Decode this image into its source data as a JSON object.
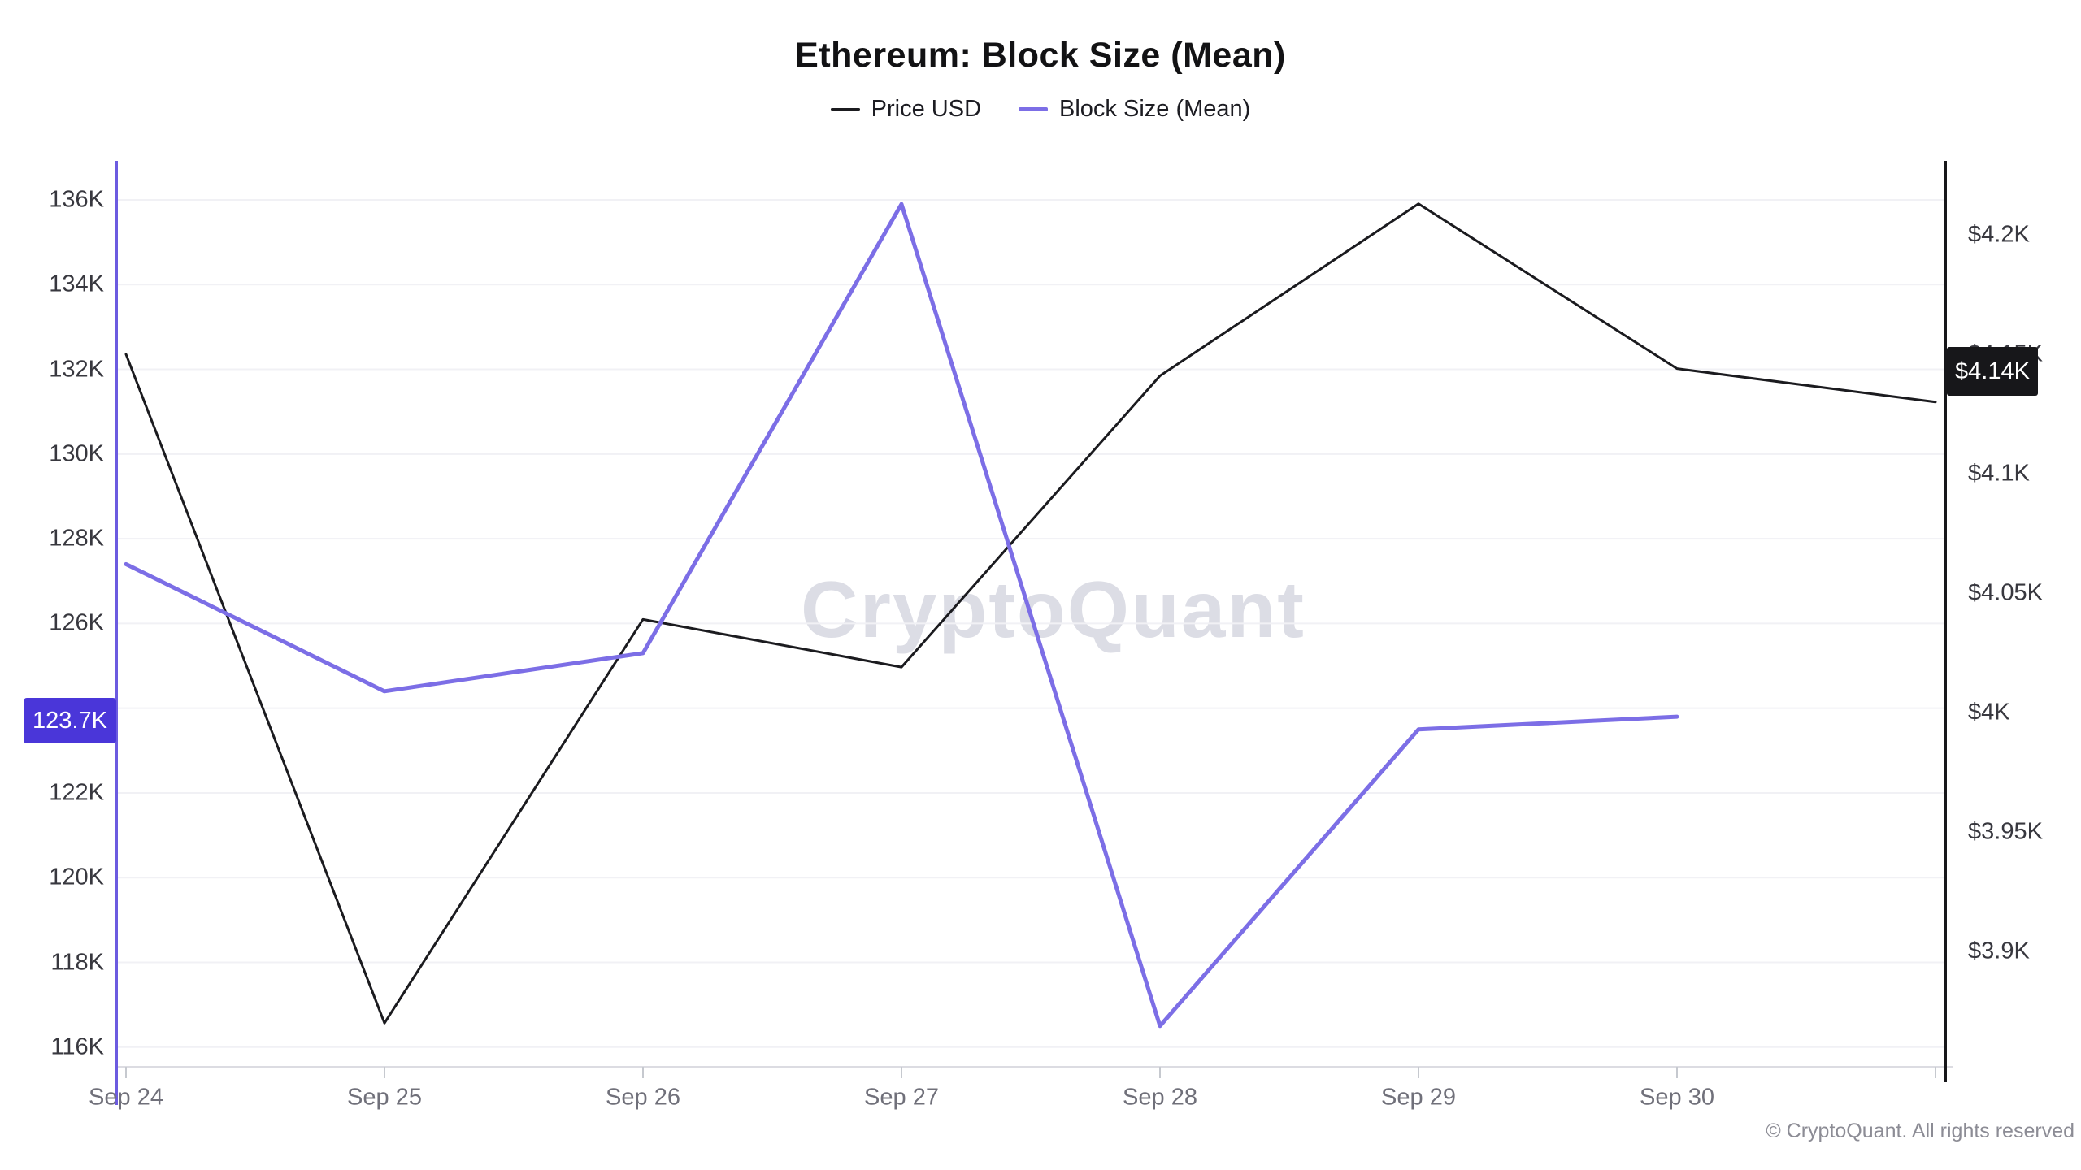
{
  "page": {
    "title": "Ethereum: Block Size (Mean)",
    "watermark": "CryptoQuant",
    "copyright": "© CryptoQuant. All rights reserved"
  },
  "legend": {
    "items": [
      {
        "label": "Price USD",
        "color": "#1b1b1f",
        "marker_thickness": 3
      },
      {
        "label": "Block Size (Mean)",
        "color": "#7c6ee6",
        "marker_thickness": 5
      }
    ],
    "position": "top-center"
  },
  "left_axis": {
    "series": "Block Size (Mean)",
    "unit": "KB",
    "axis_color": "#6c5be0",
    "tick_values": [
      136,
      134,
      132,
      130,
      128,
      126,
      124,
      122,
      120,
      118,
      116
    ],
    "tick_labels": [
      "136K",
      "134K",
      "132K",
      "130K",
      "128K",
      "126K",
      null,
      "122K",
      "120K",
      "118K",
      "116K"
    ],
    "badge": {
      "label": "123.7K",
      "value": 123.7,
      "bg": "#4a36d9"
    }
  },
  "right_axis": {
    "series": "Price USD",
    "unit": "USD",
    "axis_color": "#17171a",
    "tick_values": [
      4200,
      4150,
      4100,
      4050,
      4000,
      3950,
      3900
    ],
    "tick_labels": [
      "$4.2K",
      "$4.15K",
      "$4.1K",
      "$4.05K",
      "$4K",
      "$3.95K",
      "$3.9K"
    ],
    "hidden_tick_behind_badge": "$4.15K",
    "badge": {
      "label": "$4.14K",
      "value": 4140,
      "bg": "#17171a"
    }
  },
  "x_axis": {
    "labels": [
      "Sep 24",
      "Sep 25",
      "Sep 26",
      "Sep 27",
      "Sep 28",
      "Sep 29",
      "Sep 30"
    ]
  },
  "chart_data": {
    "type": "line",
    "title": "Ethereum: Block Size (Mean)",
    "x": [
      "Sep 24",
      "Sep 25",
      "Sep 26",
      "Sep 27",
      "Sep 28",
      "Sep 29",
      "Sep 30",
      "Oct 1 (partial, unlabeled)"
    ],
    "series": [
      {
        "name": "Price USD",
        "yaxis": "right",
        "color": "#1b1b1f",
        "units": "USD",
        "values": [
          4150,
          3870,
          4039,
          4019,
          4141,
          4213,
          4144,
          4130
        ],
        "latest_badge": "$4.14K"
      },
      {
        "name": "Block Size (Mean)",
        "yaxis": "left",
        "color": "#7c6ee6",
        "units": "KB (thousands of bytes)",
        "values": [
          127.4,
          124.4,
          125.3,
          135.9,
          116.5,
          123.5,
          123.8,
          null
        ],
        "latest_badge": "123.7K"
      }
    ],
    "left_ylim": [
      115.5,
      136.9
    ],
    "right_ylim": [
      3852,
      4230
    ],
    "grid": "horizontal, aligned to left-axis ticks",
    "legend_position": "top-center"
  }
}
